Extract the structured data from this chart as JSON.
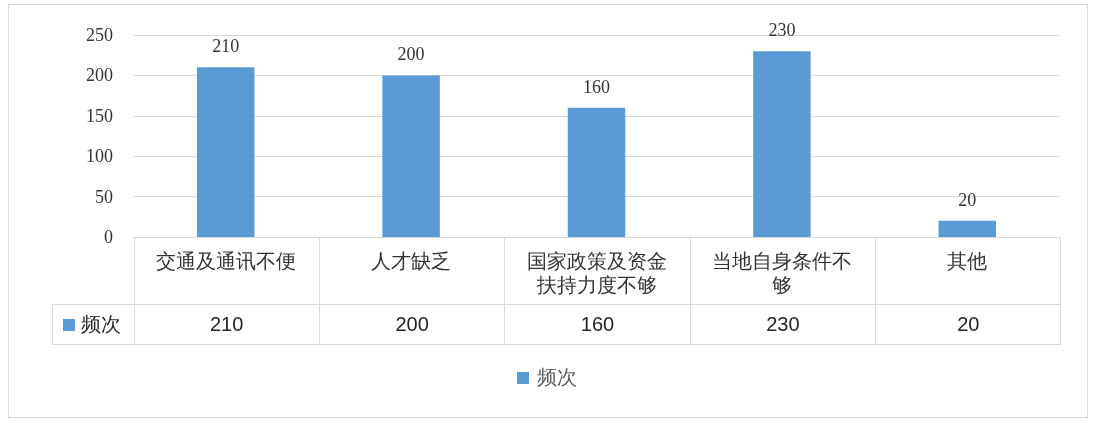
{
  "chart_data": {
    "type": "bar",
    "categories": [
      "交通及通讯不便",
      "人才缺乏",
      "国家政策及资金扶持力度不够",
      "当地自身条件不够",
      "其他"
    ],
    "series": [
      {
        "name": "频次",
        "color": "#5b9bd5",
        "values": [
          210,
          200,
          160,
          230,
          20
        ],
        "value_labels": [
          "210",
          "200",
          "160",
          "230",
          "20"
        ]
      }
    ],
    "ylim": [
      0,
      250
    ],
    "yticks": [
      0,
      50,
      100,
      150,
      200,
      250
    ],
    "annotations": [
      "210",
      "200",
      "160",
      "230",
      "20"
    ],
    "grid": "y",
    "data_labels": true,
    "legend": "bottom"
  }
}
